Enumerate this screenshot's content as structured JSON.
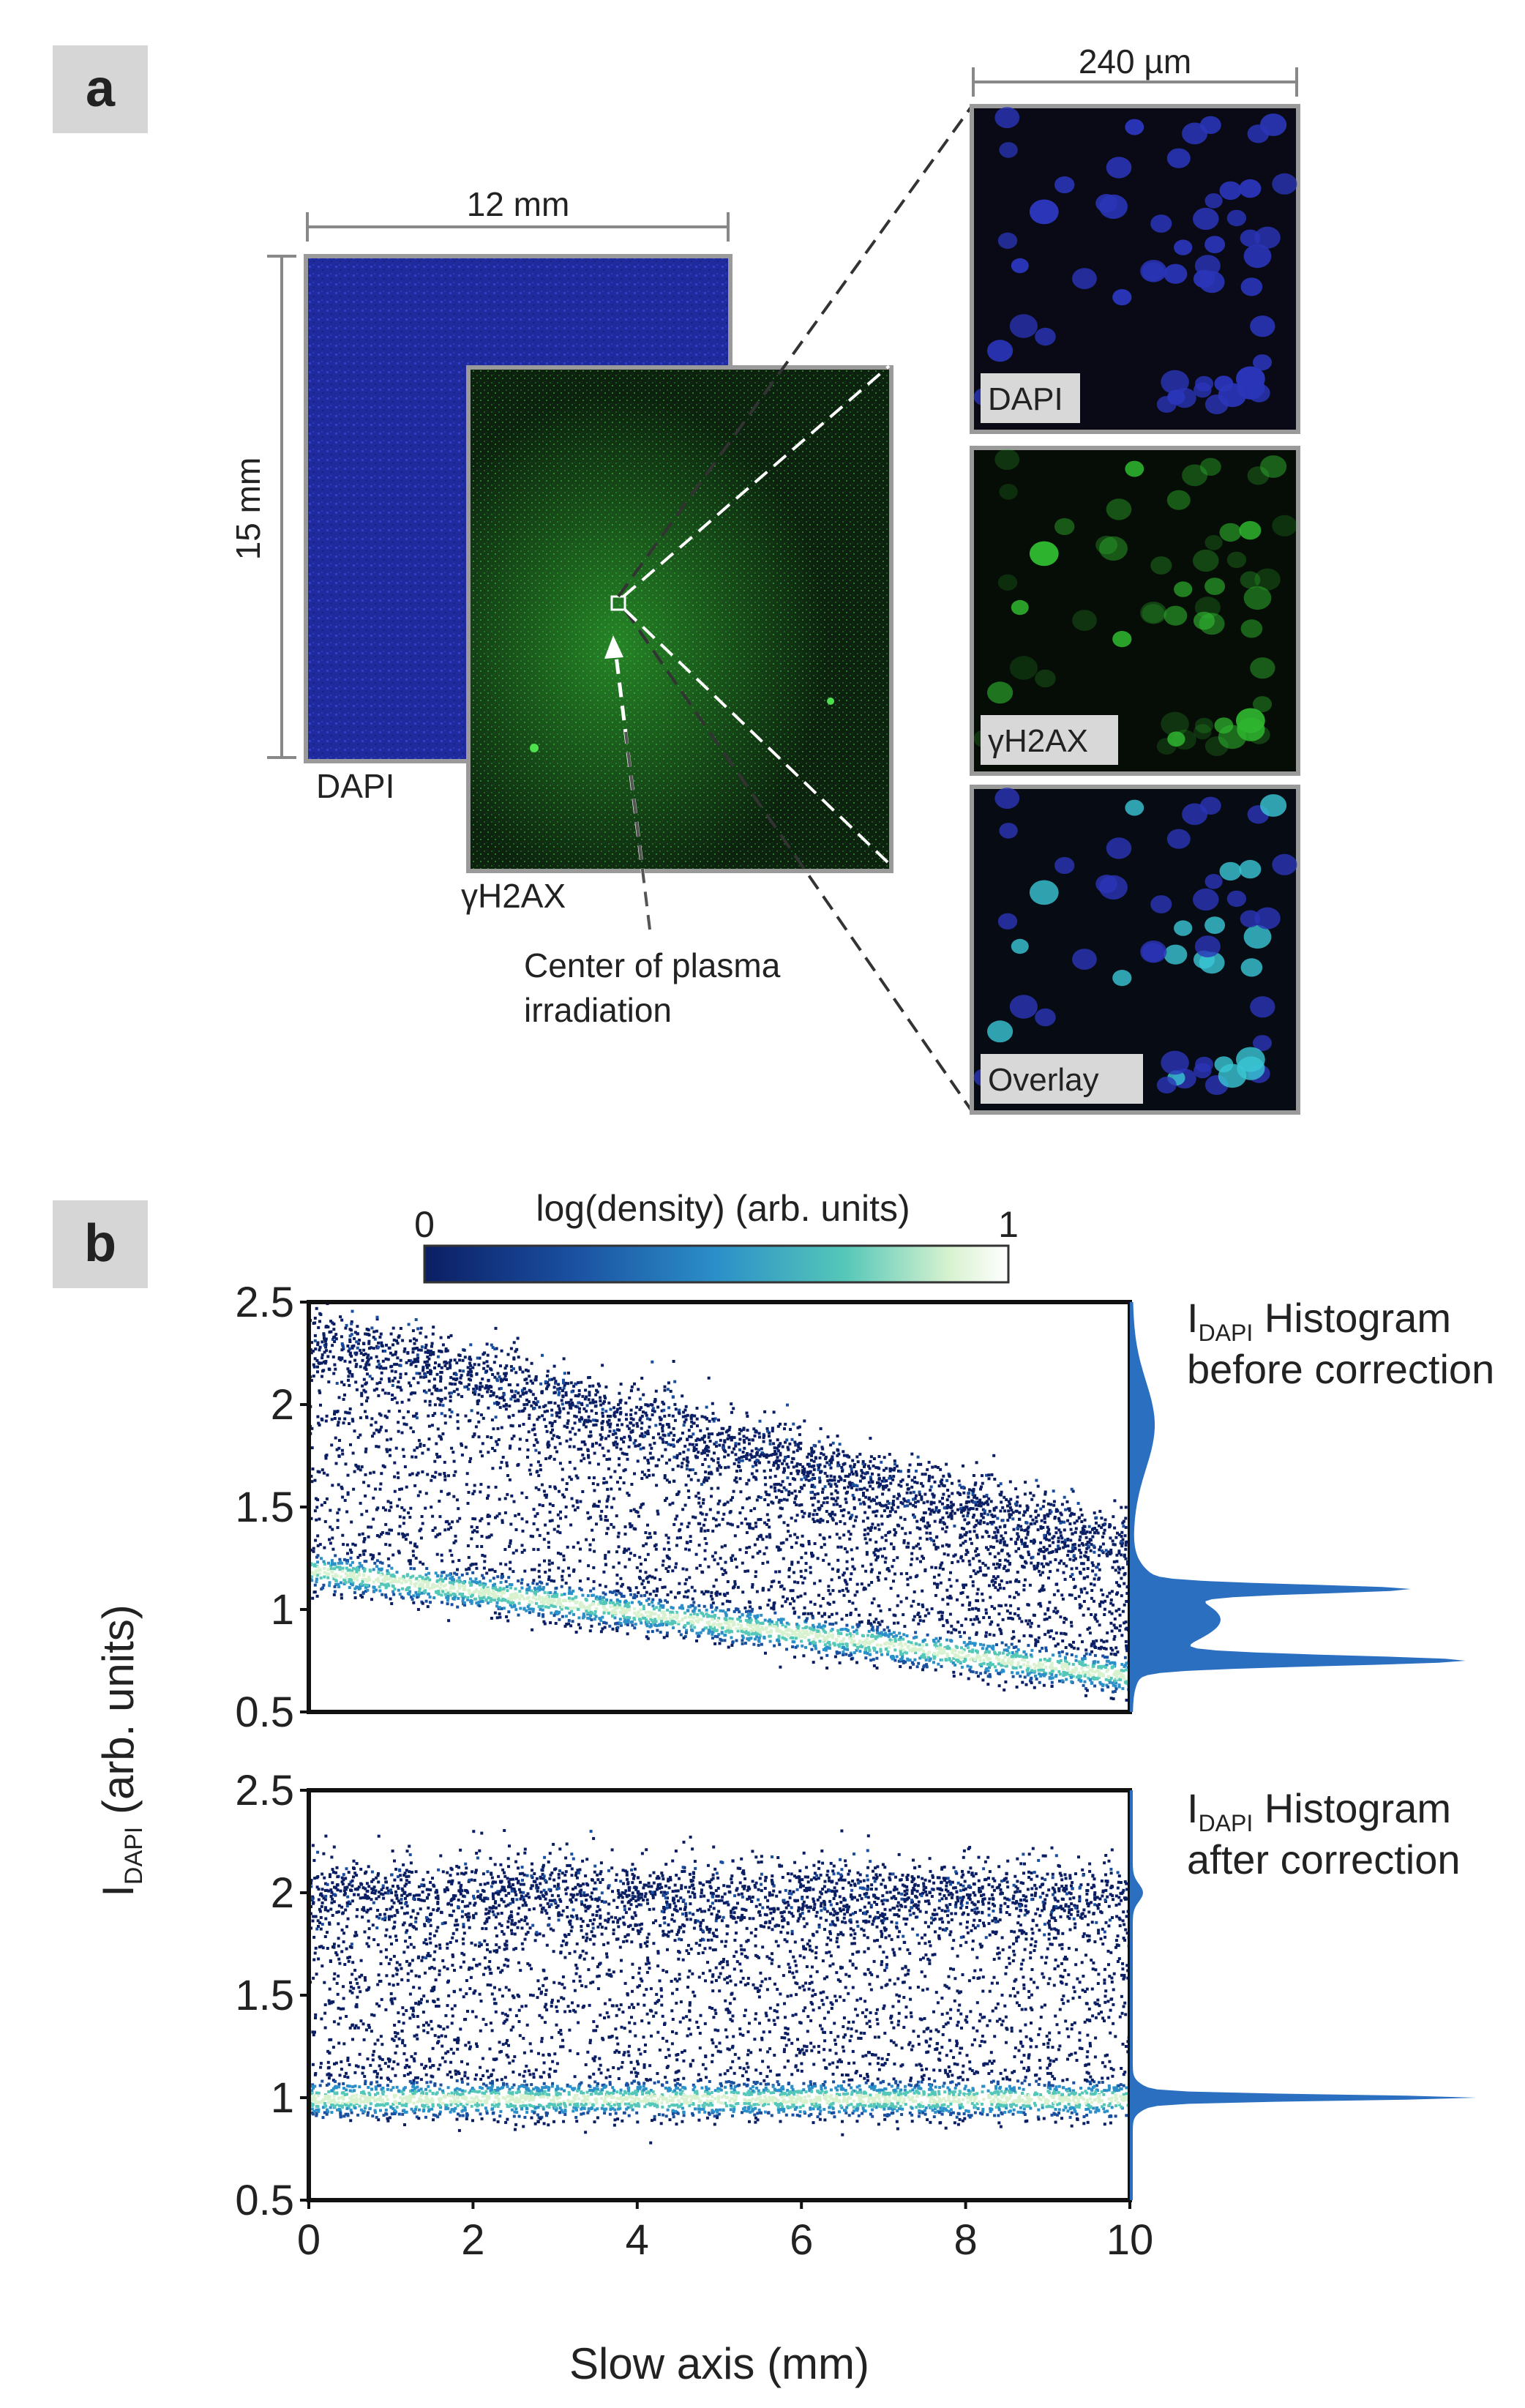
{
  "panel_a": {
    "letter": "a",
    "dim_width_mm": "12 mm",
    "dim_height_mm": "15 mm",
    "dim_zoom": "240 µm",
    "label_dapi": "DAPI",
    "label_gh2ax": "γH2AX",
    "annotation_line1": "Center of plasma",
    "annotation_line2": "irradiation",
    "insets": [
      "DAPI",
      "γH2AX",
      "Overlay"
    ],
    "colors": {
      "dapi": "#2a35b8",
      "gh2ax": "#2fb52f",
      "overlay": "#39c7d6"
    }
  },
  "panel_b": {
    "letter": "b",
    "colorbar_title": "log(density) (arb. units)",
    "colorbar_min": "0",
    "colorbar_max": "1",
    "hist_top_l1_sym": "I",
    "hist_top_l1_sub": "DAPI",
    "hist_top_l1_rest": " Histogram",
    "hist_top_l2": "before correction",
    "hist_bot_l1_sym": "I",
    "hist_bot_l1_sub": "DAPI",
    "hist_bot_l1_rest": " Histogram",
    "hist_bot_l2": "after correction",
    "ylabel_sym": "I",
    "ylabel_sub": "DAPI",
    "ylabel_rest": " (arb. units)",
    "xlabel": "Slow axis (mm)",
    "colormap": [
      "#0b1e63",
      "#1a4fa0",
      "#2b8fc8",
      "#55c7b8",
      "#d8f2d0",
      "#ffffff"
    ]
  },
  "chart_data": [
    {
      "type": "heatmap",
      "name": "before correction",
      "xlabel": "Slow axis (mm)",
      "ylabel": "I_DAPI (arb. units)",
      "xlim": [
        0,
        10
      ],
      "ylim": [
        0.5,
        2.5
      ],
      "xticks": [
        "0",
        "2",
        "4",
        "6",
        "8",
        "10"
      ],
      "yticks": [
        "0.5",
        "1",
        "1.5",
        "2",
        "2.5"
      ],
      "band_g1": {
        "x": [
          0,
          10
        ],
        "y": [
          1.2,
          0.68
        ]
      },
      "band_g2": {
        "x": [
          0,
          10
        ],
        "y": [
          2.35,
          1.3
        ]
      },
      "histogram_peaks": [
        0.75,
        1.1
      ]
    },
    {
      "type": "heatmap",
      "name": "after correction",
      "xlabel": "Slow axis (mm)",
      "ylabel": "I_DAPI (arb. units)",
      "xlim": [
        0,
        10
      ],
      "ylim": [
        0.5,
        2.5
      ],
      "xticks": [
        "0",
        "2",
        "4",
        "6",
        "8",
        "10"
      ],
      "yticks": [
        "0.5",
        "1",
        "1.5",
        "2",
        "2.5"
      ],
      "band_g1": {
        "x": [
          0,
          10
        ],
        "y": [
          1.0,
          1.0
        ]
      },
      "band_g2": {
        "x": [
          0,
          10
        ],
        "y": [
          2.0,
          2.0
        ]
      },
      "histogram_peaks": [
        1.0,
        2.0
      ]
    }
  ]
}
